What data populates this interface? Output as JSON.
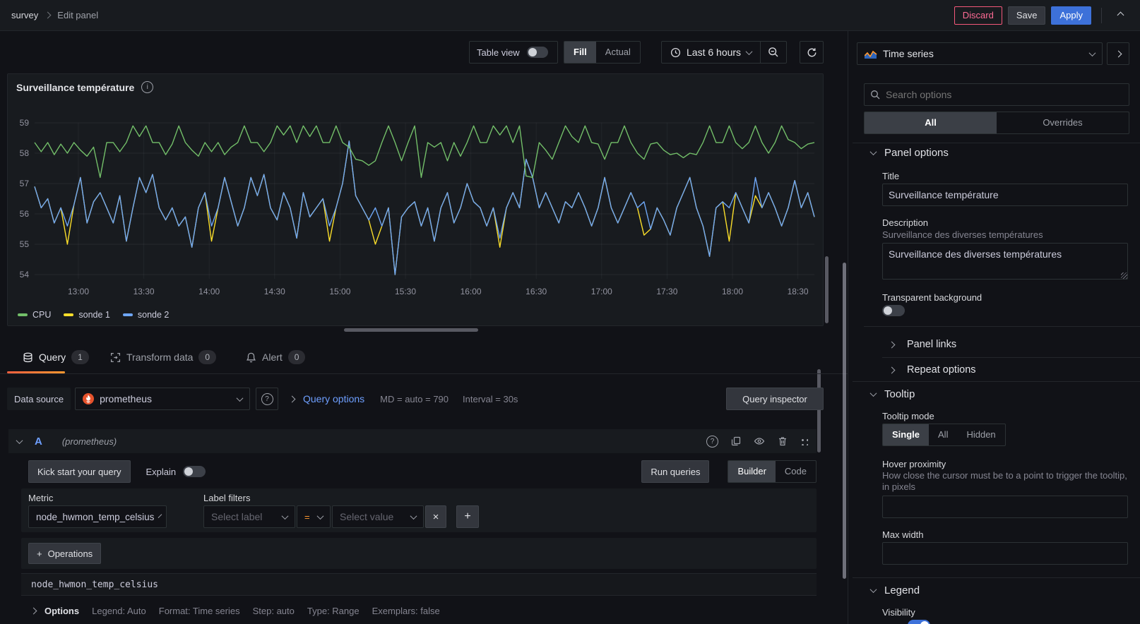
{
  "topbar": {
    "breadcrumb_dashboard": "survey",
    "breadcrumb_page": "Edit panel",
    "discard": "Discard",
    "save": "Save",
    "apply": "Apply"
  },
  "toolbar": {
    "table_view": "Table view",
    "fill": "Fill",
    "actual": "Actual",
    "time_range": "Last 6 hours"
  },
  "icons": {
    "info": "i",
    "help": "?",
    "remove": "×",
    "add": "+",
    "plus": "+"
  },
  "chart_data": {
    "type": "line",
    "title": "Surveillance température",
    "x_ticks": [
      "13:00",
      "13:30",
      "14:00",
      "14:30",
      "15:00",
      "15:30",
      "16:00",
      "16:30",
      "17:00",
      "17:30",
      "18:00",
      "18:30"
    ],
    "y_ticks": [
      54,
      55,
      56,
      57,
      58,
      59
    ],
    "ylim": [
      53.8,
      59.3
    ],
    "grid": true,
    "legend_position": "bottom",
    "series": [
      {
        "name": "CPU",
        "color": "#73bf69",
        "values": [
          58.35,
          58.05,
          58.35,
          57.95,
          58.3,
          58.0,
          58.35,
          58.1,
          57.9,
          58.2,
          57.2,
          58.35,
          58.35,
          58.05,
          58.35,
          58.9,
          58.55,
          58.9,
          58.35,
          58.35,
          57.95,
          58.3,
          58.9,
          58.35,
          58.1,
          57.9,
          58.35,
          58.05,
          58.35,
          57.95,
          58.2,
          58.35,
          58.9,
          58.35,
          58.35,
          58.05,
          58.35,
          58.9,
          58.6,
          58.9,
          58.35,
          58.9,
          58.55,
          58.9,
          58.35,
          58.35,
          58.9,
          58.35,
          58.2,
          57.8,
          57.75,
          57.6,
          57.75,
          58.35,
          58.9,
          58.35,
          57.75,
          58.35,
          58.9,
          57.2,
          58.35,
          58.2,
          58.35,
          57.75,
          58.35,
          57.9,
          58.35,
          58.9,
          58.35,
          58.35,
          58.9,
          58.6,
          58.9,
          58.35,
          58.9,
          57.25,
          57.2,
          58.35,
          58.1,
          57.8,
          58.35,
          58.9,
          58.55,
          58.35,
          58.9,
          58.35,
          58.3,
          57.8,
          58.35,
          58.35,
          58.9,
          58.35,
          58.0,
          57.8,
          58.3,
          58.35,
          58.1,
          57.95,
          58.0,
          57.85,
          58.0,
          57.95,
          58.35,
          58.9,
          58.35,
          58.35,
          58.9,
          58.35,
          58.15,
          58.35,
          58.9,
          58.35,
          58.0,
          58.35,
          58.9,
          58.45,
          58.35,
          58.15,
          58.3,
          58.35
        ]
      },
      {
        "name": "sonde 1",
        "color": "#fade2a",
        "values": [
          56.9,
          56.2,
          56.5,
          55.7,
          56.2,
          55.0,
          56.3,
          57.2,
          55.7,
          56.4,
          56.7,
          56.2,
          55.7,
          56.6,
          55.1,
          56.2,
          57.2,
          56.7,
          57.3,
          56.2,
          55.8,
          56.2,
          55.6,
          55.9,
          54.9,
          56.2,
          56.7,
          55.1,
          56.2,
          57.2,
          56.4,
          55.6,
          56.2,
          57.2,
          56.6,
          57.3,
          56.2,
          55.8,
          56.7,
          56.2,
          55.2,
          56.7,
          55.9,
          56.2,
          56.5,
          55.1,
          56.2,
          57.0,
          58.4,
          56.6,
          56.2,
          55.8,
          55.0,
          55.6,
          56.2,
          54.0,
          55.9,
          56.2,
          56.4,
          55.6,
          56.2,
          55.1,
          56.2,
          56.7,
          55.7,
          56.2,
          57.0,
          56.4,
          56.2,
          55.6,
          56.2,
          54.9,
          56.2,
          56.7,
          56.2,
          57.8,
          57.2,
          56.2,
          56.7,
          56.2,
          55.7,
          56.4,
          56.2,
          56.7,
          56.2,
          55.6,
          56.2,
          57.2,
          56.2,
          55.7,
          56.2,
          56.7,
          56.2,
          55.3,
          55.5,
          56.2,
          55.8,
          55.3,
          56.2,
          56.7,
          57.2,
          56.2,
          55.6,
          54.6,
          56.2,
          56.4,
          55.1,
          56.7,
          56.2,
          55.7,
          56.6,
          56.2,
          56.7,
          56.2,
          55.6,
          56.2,
          57.1,
          56.2,
          56.7,
          55.9
        ]
      },
      {
        "name": "sonde 2",
        "color": "#6ea6f5",
        "values": [
          56.9,
          56.2,
          56.5,
          55.7,
          56.2,
          55.6,
          56.3,
          57.2,
          55.7,
          56.4,
          56.7,
          56.2,
          55.7,
          56.6,
          55.1,
          56.2,
          57.2,
          56.7,
          57.3,
          56.2,
          55.8,
          56.2,
          55.6,
          55.9,
          54.9,
          56.2,
          56.7,
          55.6,
          56.2,
          57.2,
          56.4,
          55.6,
          56.2,
          57.2,
          56.6,
          57.3,
          56.2,
          55.8,
          56.7,
          56.2,
          55.2,
          56.7,
          55.9,
          56.2,
          56.5,
          55.6,
          56.2,
          57.0,
          58.4,
          56.6,
          56.2,
          55.8,
          56.2,
          55.6,
          56.2,
          54.0,
          55.9,
          56.2,
          56.4,
          55.6,
          56.2,
          55.1,
          56.2,
          56.7,
          55.7,
          56.2,
          57.0,
          56.4,
          56.2,
          55.6,
          56.2,
          55.2,
          56.2,
          56.7,
          56.2,
          57.8,
          57.2,
          56.2,
          56.7,
          56.2,
          55.7,
          56.4,
          56.2,
          56.7,
          56.2,
          55.6,
          56.2,
          57.2,
          56.2,
          55.7,
          56.2,
          56.7,
          56.2,
          56.4,
          55.5,
          56.2,
          55.8,
          55.3,
          56.2,
          56.7,
          57.2,
          56.2,
          55.6,
          54.6,
          56.2,
          56.4,
          56.2,
          56.7,
          56.2,
          55.7,
          57.2,
          56.2,
          56.7,
          56.2,
          55.6,
          56.2,
          57.1,
          56.2,
          56.7,
          55.9
        ]
      }
    ]
  },
  "tabs": {
    "query": {
      "label": "Query",
      "count": "1"
    },
    "transform": {
      "label": "Transform data",
      "count": "0"
    },
    "alert": {
      "label": "Alert",
      "count": "0"
    }
  },
  "datasource_row": {
    "label": "Data source",
    "value": "prometheus",
    "query_options": "Query options",
    "md": "MD = auto = 790",
    "interval": "Interval = 30s",
    "inspector": "Query inspector"
  },
  "query_editor": {
    "ref_id": "A",
    "ref_ds": "(prometheus)",
    "kick_start": "Kick start your query",
    "explain": "Explain",
    "run_queries": "Run queries",
    "builder": "Builder",
    "code": "Code",
    "metric_label": "Metric",
    "metric_value": "node_hwmon_temp_celsius",
    "label_filters": "Label filters",
    "select_label": "Select label",
    "operator": "=",
    "select_value": "Select value",
    "operations": "Operations",
    "raw_query": "node_hwmon_temp_celsius",
    "options_row": {
      "options": "Options",
      "legend": "Legend: Auto",
      "format": "Format: Time series",
      "step": "Step: auto",
      "type": "Type: Range",
      "exemplars": "Exemplars: false"
    }
  },
  "options_pane": {
    "viz_type": "Time series",
    "search_placeholder": "Search options",
    "tab_all": "All",
    "tab_overrides": "Overrides",
    "panel_options": {
      "header": "Panel options",
      "title_label": "Title",
      "title_value": "Surveillance température",
      "description_label": "Description",
      "description_hint": "Surveillance des diverses températures",
      "description_value": "Surveillance des diverses températures",
      "transparent_label": "Transparent background"
    },
    "links": {
      "panel_links": "Panel links",
      "repeat_options": "Repeat options"
    },
    "tooltip": {
      "header": "Tooltip",
      "mode_label": "Tooltip mode",
      "mode_single": "Single",
      "mode_all": "All",
      "mode_hidden": "Hidden",
      "hover_label": "Hover proximity",
      "hover_hint": "How close the cursor must be to a point to trigger the tooltip, in pixels",
      "max_width_label": "Max width"
    },
    "legend": {
      "header": "Legend",
      "visibility_label": "Visibility"
    }
  },
  "colors": {
    "accent_blue": "#3d71d9",
    "link_blue": "#6e9fff",
    "active_tab_orange": "#ff780a",
    "destructive_red": "#f4587a",
    "prometheus_orange": "#e6522c"
  }
}
